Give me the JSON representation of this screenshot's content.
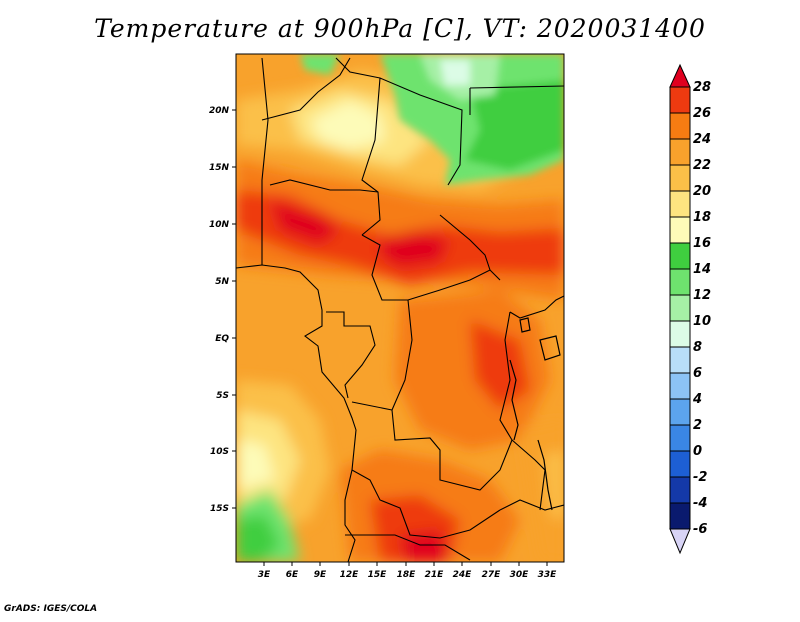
{
  "title": "Temperature at 900hPa [C], VT: 2020031400",
  "credit": "GrADS: IGES/COLA",
  "map": {
    "lat_labels": [
      "20N",
      "15N",
      "10N",
      "5N",
      "EQ",
      "5S",
      "10S",
      "15S"
    ],
    "lon_labels": [
      "3E",
      "6E",
      "9E",
      "12E",
      "15E",
      "18E",
      "21E",
      "24E",
      "27E",
      "30E",
      "33E"
    ]
  },
  "colorbar": {
    "labels": [
      "28",
      "26",
      "24",
      "22",
      "20",
      "18",
      "16",
      "14",
      "12",
      "10",
      "8",
      "6",
      "4",
      "2",
      "0",
      "-2",
      "-4",
      "-6"
    ],
    "colors": [
      "#e0001f",
      "#ee3a10",
      "#f67c12",
      "#f8a22c",
      "#fbc048",
      "#fde480",
      "#fdfbb8",
      "#3fce3f",
      "#6ee36e",
      "#a6f0a6",
      "#dcfce6",
      "#b8def8",
      "#8cc3f5",
      "#5ca4ed",
      "#3a86e4",
      "#1d5fd4",
      "#1439a8",
      "#0a1a6e",
      "#d8d4f6"
    ]
  }
}
